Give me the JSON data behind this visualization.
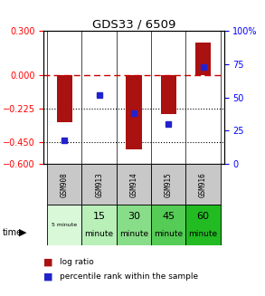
{
  "title": "GDS33 / 6509",
  "samples": [
    "GSM908",
    "GSM913",
    "GSM914",
    "GSM915",
    "GSM916"
  ],
  "time_labels_top": [
    "5",
    "15",
    "30",
    "45",
    "60"
  ],
  "time_labels_bot": [
    "minute",
    "minute",
    "minute",
    "minute",
    "minute"
  ],
  "time_label_small": "5 minute",
  "log_ratio": [
    -0.32,
    0.003,
    -0.5,
    -0.265,
    0.22
  ],
  "percentile_rank": [
    18,
    52,
    38,
    30,
    73
  ],
  "bar_color": "#AA1111",
  "dot_color": "#2222CC",
  "ylim_left": [
    -0.6,
    0.3
  ],
  "ylim_right": [
    0,
    100
  ],
  "yticks_left": [
    0.3,
    0,
    -0.225,
    -0.45,
    -0.6
  ],
  "yticks_right": [
    100,
    75,
    50,
    25,
    0
  ],
  "dotted_lines": [
    -0.225,
    -0.45
  ],
  "gray_color": "#c8c8c8",
  "time_colors": [
    "#d8f8d8",
    "#b8f0b8",
    "#88dd88",
    "#55cc55",
    "#22bb22"
  ]
}
